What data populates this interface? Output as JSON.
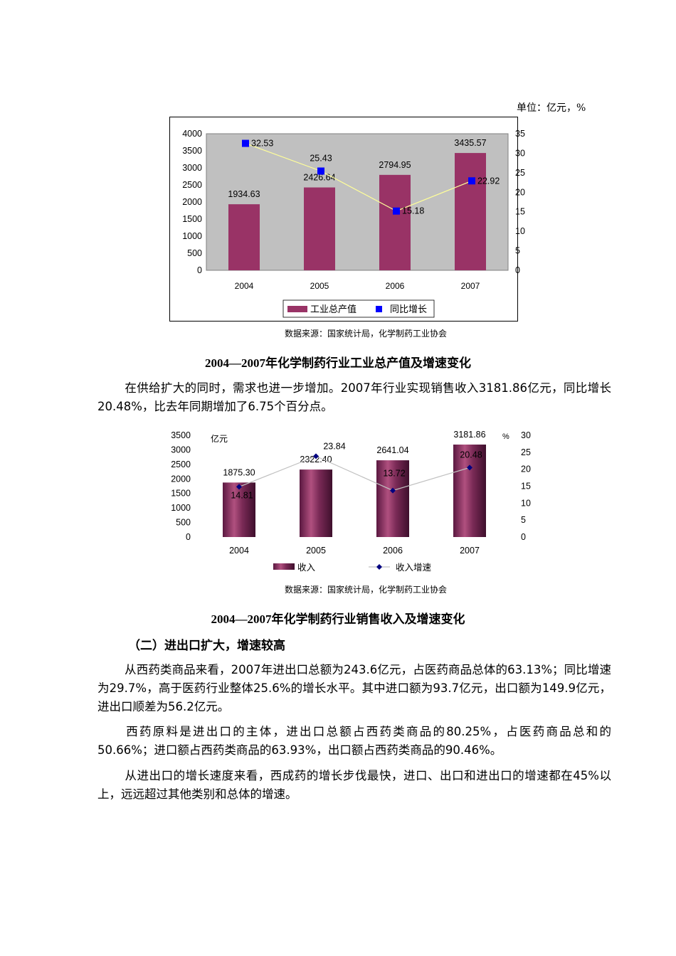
{
  "unit_label": "单位：亿元，%",
  "chart_data": [
    {
      "type": "bar",
      "categories": [
        "2004",
        "2005",
        "2006",
        "2007"
      ],
      "series": [
        {
          "name": "工业总产值",
          "kind": "bar",
          "axis": "left",
          "values": [
            1934.63,
            2426.64,
            2794.95,
            3435.57
          ],
          "labels": [
            "1934.63",
            "2426.64",
            "2794.95",
            "3435.57"
          ]
        },
        {
          "name": "同比增长",
          "kind": "line",
          "axis": "right",
          "values": [
            32.53,
            25.43,
            15.18,
            22.92
          ],
          "labels": [
            "32.53",
            "25.43",
            "15.18",
            "22.92"
          ]
        }
      ],
      "ylim_left": [
        0,
        4000
      ],
      "yticks_left": [
        "0",
        "500",
        "1000",
        "1500",
        "2000",
        "2500",
        "3000",
        "3500",
        "4000"
      ],
      "ylim_right": [
        0,
        35
      ],
      "yticks_right": [
        "0",
        "5",
        "10",
        "15",
        "20",
        "25",
        "30",
        "35"
      ],
      "legend_position": "bottom",
      "colors": {
        "bar": "#993366",
        "marker": "#0000ff",
        "line": "#ffff99",
        "plot_bg": "#c0c0c0"
      }
    },
    {
      "type": "bar",
      "categories": [
        "2004",
        "2005",
        "2006",
        "2007"
      ],
      "series": [
        {
          "name": "收入",
          "kind": "bar",
          "axis": "left",
          "values": [
            1875.3,
            2322.4,
            2641.04,
            3181.86
          ],
          "labels": [
            "1875.30",
            "2322.40",
            "2641.04",
            "3181.86"
          ]
        },
        {
          "name": "收入增速",
          "kind": "line",
          "axis": "right",
          "values": [
            14.81,
            23.84,
            13.72,
            20.48
          ],
          "labels": [
            "14.81",
            "23.84",
            "13.72",
            "20.48"
          ]
        }
      ],
      "ylabel_left": "亿元",
      "ylabel_right": "%",
      "ylim_left": [
        0,
        3500
      ],
      "yticks_left": [
        "0",
        "500",
        "1000",
        "1500",
        "2000",
        "2500",
        "3000",
        "3500"
      ],
      "ylim_right": [
        0,
        30
      ],
      "yticks_right": [
        "0",
        "5",
        "10",
        "15",
        "20",
        "25",
        "30"
      ],
      "legend_position": "bottom",
      "colors": {
        "bar": "#6e1f4c",
        "marker": "#000080",
        "line": "#c0c0c0"
      }
    }
  ],
  "source1": "数据来源：国家统计局，化学制药工业协会",
  "caption1": "2004—2007年化学制药行业工业总产值及增速变化",
  "para1": "在供给扩大的同时，需求也进一步增加。2007年行业实现销售收入3181.86亿元，同比增长20.48%，比去年同期增加了6.75个百分点。",
  "source2": "数据来源：国家统计局，化学制药工业协会",
  "caption2": "2004—2007年化学制药行业销售收入及增速变化",
  "heading": "（二）进出口扩大，增速较高",
  "para2": "从西药类商品来看，2007年进出口总额为243.6亿元，占医药商品总体的63.13%；同比增速为29.7%，高于医药行业整体25.6%的增长水平。其中进口额为93.7亿元，出口额为149.9亿元，进出口顺差为56.2亿元。",
  "para3": "西药原料是进出口的主体，进出口总额占西药类商品的80.25%，占医药商品总和的50.66%；进口额占西药类商品的63.93%，出口额占西药类商品的90.46%。",
  "para4": "从进出口的增长速度来看，西成药的增长步伐最快，进口、出口和进出口的增速都在45%以上，远远超过其他类别和总体的增速。"
}
